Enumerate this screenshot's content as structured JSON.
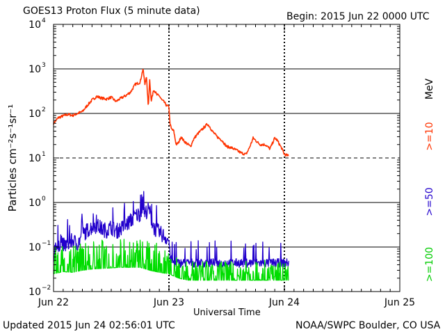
{
  "header": {
    "title": "GOES13 Proton Flux (5 minute data)",
    "begin": "Begin: 2015 Jun 22 0000 UTC"
  },
  "footer": {
    "updated": "Updated 2015 Jun 24 02:56:01 UTC",
    "source": "NOAA/SWPC Boulder, CO USA"
  },
  "chart_data": {
    "type": "line",
    "title": "GOES13 Proton Flux (5 minute data)",
    "xlabel": "Universal Time",
    "ylabel": "Particles cm⁻²s⁻¹sr⁻¹",
    "x_unit": "hours since 2015 Jun 22 0000 UTC",
    "xlim": [
      0,
      72
    ],
    "xticks": [
      {
        "x": 0,
        "label": "Jun 22"
      },
      {
        "x": 24,
        "label": "Jun 23"
      },
      {
        "x": 48,
        "label": "Jun 24"
      },
      {
        "x": 72,
        "label": "Jun 25"
      }
    ],
    "ylim_log10": [
      -2,
      4
    ],
    "ytick_exponents": [
      -2,
      -1,
      0,
      1,
      2,
      3,
      4
    ],
    "y_scale": "log",
    "threshold_line": {
      "value": 10,
      "style": "dashed"
    },
    "energy_unit": "MeV",
    "series": [
      {
        "name": ">=10",
        "color": "#ff3300",
        "points": [
          [
            0,
            60
          ],
          [
            1,
            80
          ],
          [
            2,
            88
          ],
          [
            3,
            95
          ],
          [
            4,
            90
          ],
          [
            5,
            100
          ],
          [
            6,
            110
          ],
          [
            7,
            150
          ],
          [
            8,
            200
          ],
          [
            9,
            240
          ],
          [
            10,
            220
          ],
          [
            11,
            210
          ],
          [
            12,
            230
          ],
          [
            13,
            185
          ],
          [
            14,
            220
          ],
          [
            15,
            250
          ],
          [
            16,
            300
          ],
          [
            17,
            450
          ],
          [
            18,
            500
          ],
          [
            18.6,
            1000
          ],
          [
            19,
            450
          ],
          [
            19.3,
            700
          ],
          [
            19.7,
            140
          ],
          [
            20,
            600
          ],
          [
            20.3,
            180
          ],
          [
            20.8,
            350
          ],
          [
            21.5,
            260
          ],
          [
            22,
            250
          ],
          [
            22.5,
            200
          ],
          [
            23,
            180
          ],
          [
            23.5,
            150
          ],
          [
            24,
            140
          ],
          [
            24.2,
            60
          ],
          [
            24.5,
            45
          ],
          [
            25,
            40
          ],
          [
            25.5,
            20
          ],
          [
            26,
            22
          ],
          [
            26.5,
            30
          ],
          [
            27,
            25
          ],
          [
            27.5,
            22
          ],
          [
            28,
            20
          ],
          [
            28.5,
            18
          ],
          [
            29,
            25
          ],
          [
            29.5,
            30
          ],
          [
            30,
            35
          ],
          [
            31,
            45
          ],
          [
            32,
            58
          ],
          [
            32.5,
            50
          ],
          [
            33,
            40
          ],
          [
            34,
            30
          ],
          [
            35,
            25
          ],
          [
            36,
            18
          ],
          [
            37,
            17
          ],
          [
            38,
            15
          ],
          [
            39,
            13
          ],
          [
            40,
            12
          ],
          [
            40.5,
            15
          ],
          [
            41,
            20
          ],
          [
            41.5,
            28
          ],
          [
            42,
            25
          ],
          [
            42.5,
            22
          ],
          [
            43,
            20
          ],
          [
            44,
            20
          ],
          [
            45,
            16
          ],
          [
            46,
            28
          ],
          [
            46.5,
            25
          ],
          [
            47,
            20
          ],
          [
            47.5,
            16
          ],
          [
            48,
            12
          ],
          [
            49,
            11
          ]
        ]
      },
      {
        "name": ">=50",
        "color": "#2200cc",
        "points": [
          [
            0,
            0.05
          ],
          [
            0.5,
            0.11
          ],
          [
            1,
            0.07
          ],
          [
            1.5,
            0.14
          ],
          [
            2,
            0.09
          ],
          [
            3,
            0.1
          ],
          [
            4,
            0.12
          ],
          [
            5,
            0.1
          ],
          [
            6,
            0.16
          ],
          [
            7,
            0.2
          ],
          [
            8,
            0.24
          ],
          [
            9,
            0.26
          ],
          [
            10,
            0.22
          ],
          [
            11,
            0.2
          ],
          [
            12,
            0.24
          ],
          [
            13,
            0.19
          ],
          [
            14,
            0.22
          ],
          [
            15,
            0.26
          ],
          [
            16,
            0.33
          ],
          [
            17,
            0.42
          ],
          [
            18,
            0.48
          ],
          [
            18.6,
            0.8
          ],
          [
            19,
            0.45
          ],
          [
            19.5,
            0.6
          ],
          [
            20,
            0.55
          ],
          [
            20.5,
            0.3
          ],
          [
            21,
            0.22
          ],
          [
            22,
            0.18
          ],
          [
            23,
            0.15
          ],
          [
            24,
            0.12
          ],
          [
            24.3,
            0.05
          ],
          [
            25,
            0.04
          ],
          [
            27,
            0.04
          ],
          [
            30,
            0.04
          ],
          [
            33,
            0.04
          ],
          [
            36,
            0.04
          ],
          [
            39,
            0.04
          ],
          [
            42,
            0.04
          ],
          [
            45,
            0.04
          ],
          [
            48,
            0.04
          ],
          [
            49,
            0.04
          ]
        ]
      },
      {
        "name": ">=100",
        "color": "#00dd00",
        "points": [
          [
            0,
            0.025
          ],
          [
            2,
            0.028
          ],
          [
            4,
            0.027
          ],
          [
            6,
            0.03
          ],
          [
            8,
            0.032
          ],
          [
            10,
            0.033
          ],
          [
            12,
            0.034
          ],
          [
            14,
            0.035
          ],
          [
            16,
            0.035
          ],
          [
            18,
            0.035
          ],
          [
            20,
            0.03
          ],
          [
            22,
            0.027
          ],
          [
            24,
            0.025
          ],
          [
            26,
            0.02
          ],
          [
            28,
            0.018
          ],
          [
            30,
            0.018
          ],
          [
            32,
            0.018
          ],
          [
            34,
            0.018
          ],
          [
            36,
            0.018
          ],
          [
            38,
            0.018
          ],
          [
            40,
            0.018
          ],
          [
            42,
            0.018
          ],
          [
            44,
            0.018
          ],
          [
            46,
            0.018
          ],
          [
            48,
            0.018
          ],
          [
            49,
            0.018
          ]
        ]
      }
    ]
  }
}
